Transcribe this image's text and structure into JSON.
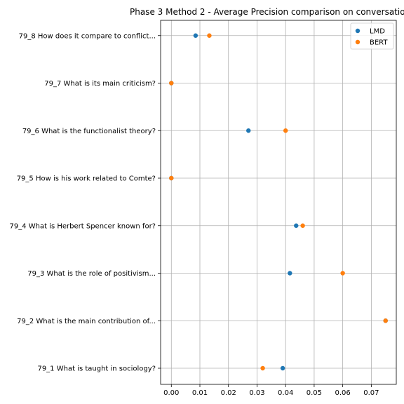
{
  "chart_data": {
    "type": "scatter",
    "title": "Phase 3 Method 2 - Average Precision comparison on conversatio",
    "xlabel": "",
    "ylabel": "",
    "categories": [
      "79_1 What is taught in sociology?",
      "79_2 What is the main contribution of...",
      "79_3 What is the role of positivism...",
      "79_4 What is Herbert Spencer known for?",
      "79_5 How is his work related to Comte?",
      "79_6 What is the functionalist theory?",
      "79_7 What is its main criticism?",
      "79_8 How does it compare to conflict..."
    ],
    "series": [
      {
        "name": "LMD",
        "color": "#1f77b4",
        "values": [
          0.039,
          0.075,
          0.0415,
          0.0437,
          0.0,
          0.027,
          0.0,
          0.0085
        ]
      },
      {
        "name": "BERT",
        "color": "#ff7f0e",
        "values": [
          0.032,
          0.075,
          0.06,
          0.046,
          0.0,
          0.04,
          0.0,
          0.0133
        ]
      }
    ],
    "xlim": [
      -0.00375,
      0.07875
    ],
    "xticks": [
      0.0,
      0.01,
      0.02,
      0.03,
      0.04,
      0.05,
      0.06,
      0.07
    ],
    "xtick_labels": [
      "0.00",
      "0.01",
      "0.02",
      "0.03",
      "0.04",
      "0.05",
      "0.06",
      "0.07"
    ],
    "grid": true,
    "legend_position": "top-right"
  }
}
